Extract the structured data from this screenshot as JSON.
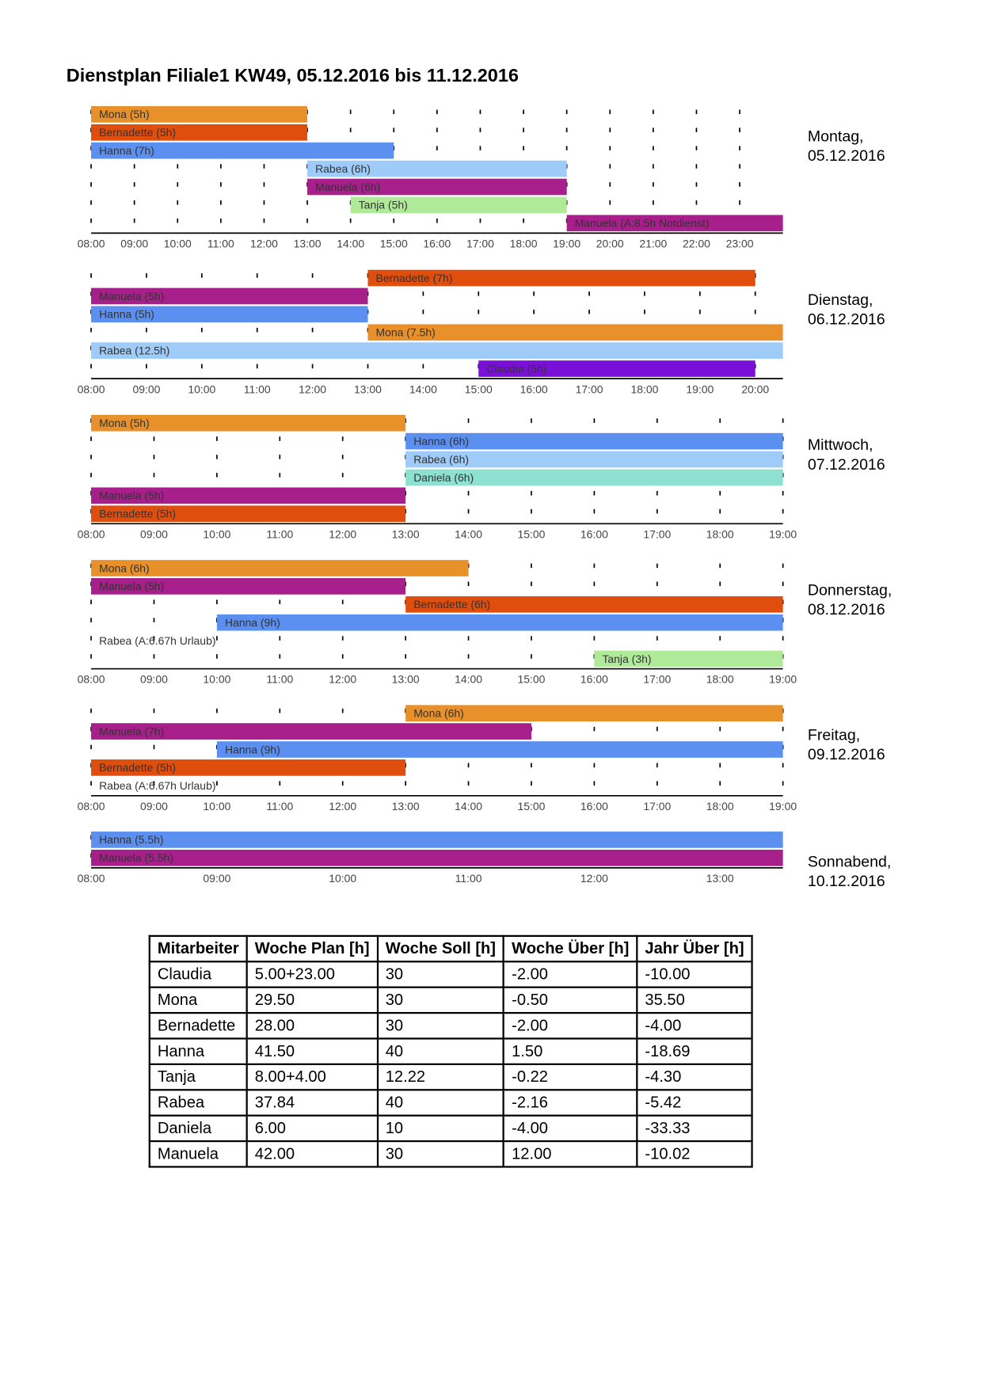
{
  "title": "Dienstplan Filiale1 KW49, 05.12.2016 bis 11.12.2016",
  "days": [
    {
      "name": "Montag,",
      "date": "05.12.2016",
      "xlim": [
        8,
        24
      ],
      "ticks": [
        {
          "value": 8,
          "label": "08:00"
        },
        {
          "value": 9,
          "label": "09:00"
        },
        {
          "value": 10,
          "label": "10:00"
        },
        {
          "value": 11,
          "label": "11:00"
        },
        {
          "value": 12,
          "label": "12:00"
        },
        {
          "value": 13,
          "label": "13:00"
        },
        {
          "value": 14,
          "label": "14:00"
        },
        {
          "value": 15,
          "label": "15:00"
        },
        {
          "value": 16,
          "label": "16:00"
        },
        {
          "value": 17,
          "label": "17:00"
        },
        {
          "value": 18,
          "label": "18:00"
        },
        {
          "value": 19,
          "label": "19:00"
        },
        {
          "value": 20,
          "label": "20:00"
        },
        {
          "value": 21,
          "label": "21:00"
        },
        {
          "value": 22,
          "label": "22:00"
        },
        {
          "value": 23,
          "label": "23:00"
        }
      ],
      "bars": [
        {
          "label": "Mona (5h)",
          "start": 8,
          "end": 13,
          "row": 0,
          "color": "#e8902a"
        },
        {
          "label": "Bernadette (5h)",
          "start": 8,
          "end": 13,
          "row": 1,
          "color": "#e04e0e"
        },
        {
          "label": "Hanna (7h)",
          "start": 8,
          "end": 15,
          "row": 2,
          "color": "#5b8ff0"
        },
        {
          "label": "Rabea (6h)",
          "start": 13,
          "end": 19,
          "row": 3,
          "color": "#9ecbf7"
        },
        {
          "label": "Manuela (6h)",
          "start": 13,
          "end": 19,
          "row": 4,
          "color": "#a61f8a"
        },
        {
          "label": "Tanja (5h)",
          "start": 14,
          "end": 19,
          "row": 5,
          "color": "#aeea98"
        },
        {
          "label": "Manuela (A:8.5h Notdienst)",
          "start": 19,
          "end": 24,
          "row": 6,
          "color": "#a61f8a"
        }
      ]
    },
    {
      "name": "Dienstag,",
      "date": "06.12.2016",
      "xlim": [
        8,
        20.5
      ],
      "ticks": [
        {
          "value": 8,
          "label": "08:00"
        },
        {
          "value": 9,
          "label": "09:00"
        },
        {
          "value": 10,
          "label": "10:00"
        },
        {
          "value": 11,
          "label": "11:00"
        },
        {
          "value": 12,
          "label": "12:00"
        },
        {
          "value": 13,
          "label": "13:00"
        },
        {
          "value": 14,
          "label": "14:00"
        },
        {
          "value": 15,
          "label": "15:00"
        },
        {
          "value": 16,
          "label": "16:00"
        },
        {
          "value": 17,
          "label": "17:00"
        },
        {
          "value": 18,
          "label": "18:00"
        },
        {
          "value": 19,
          "label": "19:00"
        },
        {
          "value": 20,
          "label": "20:00"
        }
      ],
      "bars": [
        {
          "label": "Bernadette (7h)",
          "start": 13,
          "end": 20,
          "row": 0,
          "color": "#e04e0e"
        },
        {
          "label": "Manuela (5h)",
          "start": 8,
          "end": 13,
          "row": 1,
          "color": "#a61f8a"
        },
        {
          "label": "Hanna (5h)",
          "start": 8,
          "end": 13,
          "row": 2,
          "color": "#5b8ff0"
        },
        {
          "label": "Mona (7.5h)",
          "start": 13,
          "end": 20.5,
          "row": 3,
          "color": "#e8902a"
        },
        {
          "label": "Rabea (12.5h)",
          "start": 8,
          "end": 20.5,
          "row": 4,
          "color": "#9ecbf7"
        },
        {
          "label": "Claudia (5h)",
          "start": 15,
          "end": 20,
          "row": 5,
          "color": "#7a10d8"
        }
      ]
    },
    {
      "name": "Mittwoch,",
      "date": "07.12.2016",
      "xlim": [
        8,
        19
      ],
      "ticks": [
        {
          "value": 8,
          "label": "08:00"
        },
        {
          "value": 9,
          "label": "09:00"
        },
        {
          "value": 10,
          "label": "10:00"
        },
        {
          "value": 11,
          "label": "11:00"
        },
        {
          "value": 12,
          "label": "12:00"
        },
        {
          "value": 13,
          "label": "13:00"
        },
        {
          "value": 14,
          "label": "14:00"
        },
        {
          "value": 15,
          "label": "15:00"
        },
        {
          "value": 16,
          "label": "16:00"
        },
        {
          "value": 17,
          "label": "17:00"
        },
        {
          "value": 18,
          "label": "18:00"
        },
        {
          "value": 19,
          "label": "19:00"
        }
      ],
      "bars": [
        {
          "label": "Mona (5h)",
          "start": 8,
          "end": 13,
          "row": 0,
          "color": "#e8902a"
        },
        {
          "label": "Hanna (6h)",
          "start": 13,
          "end": 19,
          "row": 1,
          "color": "#5b8ff0"
        },
        {
          "label": "Rabea (6h)",
          "start": 13,
          "end": 19,
          "row": 2,
          "color": "#9ecbf7"
        },
        {
          "label": "Daniela (6h)",
          "start": 13,
          "end": 19,
          "row": 3,
          "color": "#8ee0d0"
        },
        {
          "label": "Manuela (5h)",
          "start": 8,
          "end": 13,
          "row": 4,
          "color": "#a61f8a"
        },
        {
          "label": "Bernadette (5h)",
          "start": 8,
          "end": 13,
          "row": 5,
          "color": "#e04e0e"
        }
      ]
    },
    {
      "name": "Donnerstag,",
      "date": "08.12.2016",
      "xlim": [
        8,
        19
      ],
      "ticks": [
        {
          "value": 8,
          "label": "08:00"
        },
        {
          "value": 9,
          "label": "09:00"
        },
        {
          "value": 10,
          "label": "10:00"
        },
        {
          "value": 11,
          "label": "11:00"
        },
        {
          "value": 12,
          "label": "12:00"
        },
        {
          "value": 13,
          "label": "13:00"
        },
        {
          "value": 14,
          "label": "14:00"
        },
        {
          "value": 15,
          "label": "15:00"
        },
        {
          "value": 16,
          "label": "16:00"
        },
        {
          "value": 17,
          "label": "17:00"
        },
        {
          "value": 18,
          "label": "18:00"
        },
        {
          "value": 19,
          "label": "19:00"
        }
      ],
      "bars": [
        {
          "label": "Mona (6h)",
          "start": 8,
          "end": 14,
          "row": 0,
          "color": "#e8902a"
        },
        {
          "label": "Manuela (5h)",
          "start": 8,
          "end": 13,
          "row": 1,
          "color": "#a61f8a"
        },
        {
          "label": "Bernadette (6h)",
          "start": 13,
          "end": 19,
          "row": 2,
          "color": "#e04e0e"
        },
        {
          "label": "Hanna (9h)",
          "start": 10,
          "end": 19,
          "row": 3,
          "color": "#5b8ff0"
        },
        {
          "label": "Rabea (A:6.67h Urlaub)",
          "start": 8,
          "row": 4
        },
        {
          "label": "Tanja (3h)",
          "start": 16,
          "end": 19,
          "row": 5,
          "color": "#aeea98"
        }
      ]
    },
    {
      "name": "Freitag,",
      "date": "09.12.2016",
      "xlim": [
        8,
        19
      ],
      "ticks": [
        {
          "value": 8,
          "label": "08:00"
        },
        {
          "value": 9,
          "label": "09:00"
        },
        {
          "value": 10,
          "label": "10:00"
        },
        {
          "value": 11,
          "label": "11:00"
        },
        {
          "value": 12,
          "label": "12:00"
        },
        {
          "value": 13,
          "label": "13:00"
        },
        {
          "value": 14,
          "label": "14:00"
        },
        {
          "value": 15,
          "label": "15:00"
        },
        {
          "value": 16,
          "label": "16:00"
        },
        {
          "value": 17,
          "label": "17:00"
        },
        {
          "value": 18,
          "label": "18:00"
        },
        {
          "value": 19,
          "label": "19:00"
        }
      ],
      "bars": [
        {
          "label": "Mona (6h)",
          "start": 13,
          "end": 19,
          "row": 0,
          "color": "#e8902a"
        },
        {
          "label": "Manuela (7h)",
          "start": 8,
          "end": 15,
          "row": 1,
          "color": "#a61f8a"
        },
        {
          "label": "Hanna (9h)",
          "start": 10,
          "end": 19,
          "row": 2,
          "color": "#5b8ff0"
        },
        {
          "label": "Bernadette (5h)",
          "start": 8,
          "end": 13,
          "row": 3,
          "color": "#e04e0e"
        },
        {
          "label": "Rabea (A:6.67h Urlaub)",
          "start": 8,
          "row": 4
        }
      ]
    },
    {
      "name": "Sonnabend,",
      "date": "10.12.2016",
      "xlim": [
        8,
        13.5
      ],
      "ticks": [
        {
          "value": 8,
          "label": "08:00"
        },
        {
          "value": 9,
          "label": "09:00"
        },
        {
          "value": 10,
          "label": "10:00"
        },
        {
          "value": 11,
          "label": "11:00"
        },
        {
          "value": 12,
          "label": "12:00"
        },
        {
          "value": 13,
          "label": "13:00"
        }
      ],
      "bars": [
        {
          "label": "Hanna (5.5h)",
          "start": 8,
          "end": 13.5,
          "row": 0,
          "color": "#5b8ff0"
        },
        {
          "label": "Manuela (5.5h)",
          "start": 8,
          "end": 13.5,
          "row": 1,
          "color": "#a61f8a"
        }
      ]
    }
  ],
  "table": {
    "header": [
      "Mitarbeiter",
      "Woche Plan [h]",
      "Woche Soll [h]",
      "Woche Über [h]",
      "Jahr Über [h]"
    ],
    "rows": [
      [
        "Claudia",
        "5.00+23.00",
        "30",
        "-2.00",
        "-10.00"
      ],
      [
        "Mona",
        "29.50",
        "30",
        "-0.50",
        "35.50"
      ],
      [
        "Bernadette",
        "28.00",
        "30",
        "-2.00",
        "-4.00"
      ],
      [
        "Hanna",
        "41.50",
        "40",
        "1.50",
        "-18.69"
      ],
      [
        "Tanja",
        "8.00+4.00",
        "12.22",
        "-0.22",
        "-4.30"
      ],
      [
        "Rabea",
        "37.84",
        "40",
        "-2.16",
        "-5.42"
      ],
      [
        "Daniela",
        "6.00",
        "10",
        "-4.00",
        "-33.33"
      ],
      [
        "Manuela",
        "42.00",
        "30",
        "12.00",
        "-10.02"
      ]
    ]
  }
}
